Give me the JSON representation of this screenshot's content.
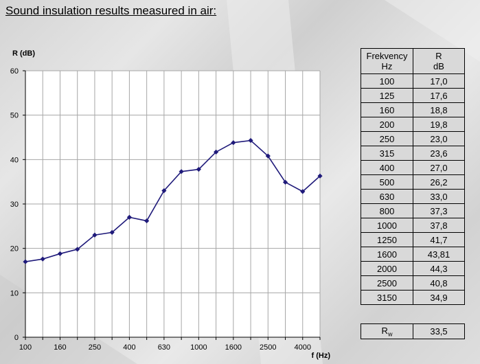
{
  "page": {
    "title": "Sound insulation results measured in air:"
  },
  "colors": {
    "line": "#1f1a7a",
    "plot_bg": "#ffffff",
    "grid": "#a6a6a6",
    "table_bg": "#d9d9d9"
  },
  "chart_data": {
    "type": "line",
    "title": "",
    "xlabel": "f (Hz)",
    "ylabel": "R (dB)",
    "ylim": [
      0,
      60
    ],
    "yticks": [
      "0",
      "10",
      "20",
      "30",
      "40",
      "50",
      "60"
    ],
    "x": [
      "100",
      "125",
      "160",
      "200",
      "250",
      "315",
      "400",
      "500",
      "630",
      "800",
      "1000",
      "1250",
      "1600",
      "2000",
      "2500",
      "3150",
      "4000",
      "5000"
    ],
    "xtick_labels": [
      "100",
      "160",
      "250",
      "400",
      "630",
      "1000",
      "1600",
      "2500",
      "4000"
    ],
    "series": [
      {
        "name": "",
        "values": [
          17.0,
          17.6,
          18.8,
          19.8,
          23.0,
          23.6,
          27.0,
          26.2,
          33.0,
          37.3,
          37.8,
          41.7,
          43.81,
          44.3,
          40.8,
          34.9,
          32.8,
          36.3
        ]
      }
    ],
    "grid": true,
    "legend": "none"
  },
  "table": {
    "header": {
      "col1_line1": "Frekvency",
      "col1_line2": "Hz",
      "col2_line1": "R",
      "col2_line2": "dB"
    },
    "rows": [
      {
        "f": "100",
        "r": "17,0"
      },
      {
        "f": "125",
        "r": "17,6"
      },
      {
        "f": "160",
        "r": "18,8"
      },
      {
        "f": "200",
        "r": "19,8"
      },
      {
        "f": "250",
        "r": "23,0"
      },
      {
        "f": "315",
        "r": "23,6"
      },
      {
        "f": "400",
        "r": "27,0"
      },
      {
        "f": "500",
        "r": "26,2"
      },
      {
        "f": "630",
        "r": "33,0"
      },
      {
        "f": "800",
        "r": "37,3"
      },
      {
        "f": "1000",
        "r": "37,8"
      },
      {
        "f": "1250",
        "r": "41,7"
      },
      {
        "f": "1600",
        "r": "43,81"
      },
      {
        "f": "2000",
        "r": "44,3"
      },
      {
        "f": "2500",
        "r": "40,8"
      },
      {
        "f": "3150",
        "r": "34,9"
      }
    ]
  },
  "rw": {
    "label": "R",
    "sub": "w",
    "value": "33,5"
  }
}
